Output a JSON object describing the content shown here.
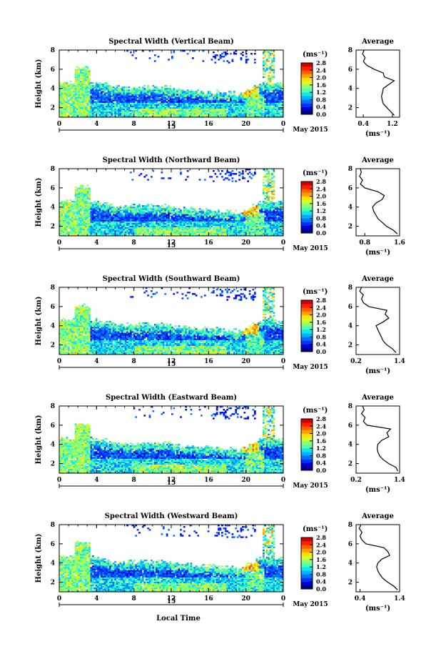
{
  "figure": {
    "month_label": "May 2015",
    "xlabel": "Local Time",
    "ylabel": "Height (km)",
    "day_label": "15",
    "cb_unit": "(ms⁻¹)",
    "avg_title": "Average",
    "avg_xlabel": "(ms⁻¹)",
    "colormap": [
      "#00007f",
      "#0000d0",
      "#0030ff",
      "#0070ff",
      "#00b0ff",
      "#10e8e8",
      "#50ffb0",
      "#90ff70",
      "#d0ff30",
      "#ffe000",
      "#ffa000",
      "#ff6000",
      "#ff2000",
      "#d00000"
    ]
  },
  "chart_data": [
    {
      "type": "heatmap",
      "title": "Spectral Width (Vertical Beam)",
      "x_ticks": [
        "0",
        "4",
        "8",
        "12",
        "16",
        "20",
        "0"
      ],
      "y_ticks": [
        "2",
        "4",
        "6",
        "8"
      ],
      "xlim": [
        0,
        24
      ],
      "ylim": [
        1,
        8
      ],
      "colorbar": {
        "ticks": [
          "2.8",
          "2.4",
          "2.0",
          "1.6",
          "1.2",
          "0.8",
          "0.4",
          "0.0"
        ],
        "range": [
          0,
          2.8
        ]
      },
      "average": {
        "x_ticks": [
          "0.4",
          "1.2"
        ],
        "xlim": [
          0.2,
          1.4
        ],
        "y_ticks": [
          "2",
          "4",
          "6",
          "8"
        ],
        "height": [
          1.2,
          1.6,
          2.0,
          2.4,
          2.8,
          3.2,
          3.6,
          4.0,
          4.4,
          4.8,
          5.2,
          5.6,
          6.0,
          6.4,
          6.8,
          7.2,
          7.6,
          8.0
        ],
        "value": [
          1.25,
          1.15,
          1.05,
          0.95,
          0.92,
          0.9,
          0.93,
          0.95,
          1.1,
          1.25,
          0.98,
          0.95,
          0.7,
          0.5,
          0.4,
          0.45,
          0.38,
          0.42
        ]
      }
    },
    {
      "type": "heatmap",
      "title": "Spectral Width (Northward Beam)",
      "x_ticks": [
        "0",
        "4",
        "8",
        "12",
        "16",
        "20",
        "0"
      ],
      "y_ticks": [
        "2",
        "4",
        "6",
        "8"
      ],
      "xlim": [
        0,
        24
      ],
      "ylim": [
        1,
        8
      ],
      "colorbar": {
        "ticks": [
          "2.8",
          "2.4",
          "2.0",
          "1.6",
          "1.2",
          "0.8",
          "0.4",
          "0.0"
        ],
        "range": [
          0,
          2.8
        ]
      },
      "average": {
        "x_ticks": [
          "0.8",
          "1.6"
        ],
        "xlim": [
          0.6,
          1.6
        ],
        "y_ticks": [
          "2",
          "4",
          "6",
          "8"
        ],
        "height": [
          1.2,
          1.6,
          2.0,
          2.4,
          2.8,
          3.2,
          3.6,
          4.0,
          4.4,
          4.8,
          5.2,
          5.6,
          6.0,
          6.4,
          6.8,
          7.2,
          7.6,
          8.0
        ],
        "value": [
          1.55,
          1.45,
          1.3,
          1.2,
          1.1,
          1.05,
          1.0,
          0.98,
          1.05,
          1.2,
          1.25,
          1.1,
          0.8,
          0.7,
          0.75,
          0.68,
          0.72,
          0.7
        ]
      }
    },
    {
      "type": "heatmap",
      "title": "Spectral Width (Southward Beam)",
      "x_ticks": [
        "0",
        "4",
        "8",
        "12",
        "16",
        "20",
        "0"
      ],
      "y_ticks": [
        "2",
        "4",
        "6",
        "8"
      ],
      "xlim": [
        0,
        24
      ],
      "ylim": [
        1,
        8
      ],
      "colorbar": {
        "ticks": [
          "2.8",
          "2.4",
          "2.0",
          "1.6",
          "1.2",
          "0.8",
          "0.4",
          "0.0"
        ],
        "range": [
          0,
          2.8
        ]
      },
      "average": {
        "x_ticks": [
          "0.2",
          "1.4"
        ],
        "xlim": [
          0.2,
          1.4
        ],
        "y_ticks": [
          "2",
          "4",
          "6",
          "8"
        ],
        "height": [
          1.2,
          1.6,
          2.0,
          2.4,
          2.8,
          3.2,
          3.6,
          4.0,
          4.4,
          4.8,
          5.2,
          5.6,
          6.0,
          6.4,
          6.8,
          7.2,
          7.6,
          8.0
        ],
        "value": [
          1.3,
          1.2,
          1.05,
          0.95,
          0.9,
          0.85,
          0.8,
          0.75,
          0.95,
          1.1,
          1.0,
          1.05,
          0.55,
          0.4,
          0.35,
          0.4,
          0.3,
          0.35
        ]
      }
    },
    {
      "type": "heatmap",
      "title": "Spectral Width (Eastward Beam)",
      "x_ticks": [
        "0",
        "4",
        "8",
        "12",
        "16",
        "20",
        "0"
      ],
      "y_ticks": [
        "2",
        "4",
        "6",
        "8"
      ],
      "xlim": [
        0,
        24
      ],
      "ylim": [
        1,
        8
      ],
      "colorbar": {
        "ticks": [
          "2.8",
          "2.4",
          "2.0",
          "1.6",
          "1.2",
          "0.8",
          "0.4",
          "0.0"
        ],
        "range": [
          0,
          2.8
        ]
      },
      "average": {
        "x_ticks": [
          "0.2",
          "1.4"
        ],
        "xlim": [
          0.2,
          1.4
        ],
        "y_ticks": [
          "2",
          "4",
          "6",
          "8"
        ],
        "height": [
          1.2,
          1.6,
          2.0,
          2.4,
          2.8,
          3.2,
          3.6,
          4.0,
          4.4,
          4.8,
          5.2,
          5.6,
          6.0,
          6.4,
          6.8,
          7.2,
          7.6,
          8.0
        ],
        "value": [
          1.35,
          1.3,
          1.1,
          0.95,
          0.85,
          0.8,
          0.78,
          0.8,
          0.9,
          1.1,
          1.05,
          1.15,
          0.5,
          0.4,
          0.45,
          0.35,
          0.42,
          0.38
        ]
      }
    },
    {
      "type": "heatmap",
      "title": "Spectral Width (Westward Beam)",
      "x_ticks": [
        "0",
        "4",
        "8",
        "12",
        "16",
        "20",
        "0"
      ],
      "y_ticks": [
        "2",
        "4",
        "6",
        "8"
      ],
      "xlim": [
        0,
        24
      ],
      "ylim": [
        1,
        8
      ],
      "colorbar": {
        "ticks": [
          "2.8",
          "2.4",
          "2.0",
          "1.6",
          "1.2",
          "0.8",
          "0.4",
          "0.0"
        ],
        "range": [
          0,
          2.8
        ]
      },
      "average": {
        "x_ticks": [
          "0.4",
          "1.4"
        ],
        "xlim": [
          0.3,
          1.4
        ],
        "y_ticks": [
          "2",
          "4",
          "6",
          "8"
        ],
        "height": [
          1.2,
          1.6,
          2.0,
          2.4,
          2.8,
          3.2,
          3.6,
          4.0,
          4.4,
          4.8,
          5.2,
          5.6,
          6.0,
          6.4,
          6.8,
          7.2,
          7.6,
          8.0
        ],
        "value": [
          1.35,
          1.25,
          1.1,
          0.98,
          0.9,
          0.85,
          0.82,
          0.85,
          0.95,
          1.15,
          1.1,
          1.0,
          0.55,
          0.45,
          0.4,
          0.45,
          0.38,
          0.42
        ]
      }
    }
  ]
}
